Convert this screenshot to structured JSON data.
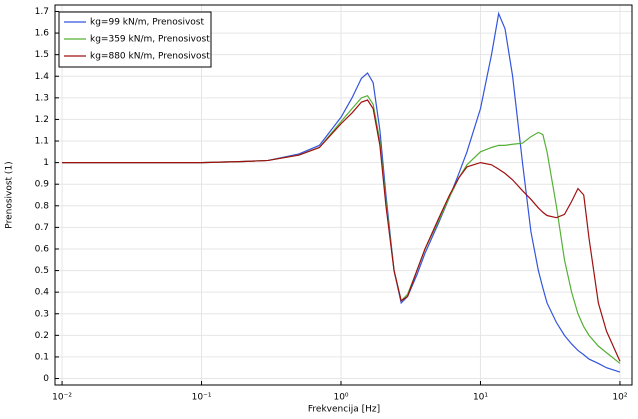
{
  "chart_data": {
    "type": "line",
    "xlabel": "Frekvencija [Hz]",
    "ylabel": "Prenosivost (1)",
    "xscale": "log",
    "grid": true,
    "legend": "upper-left",
    "xlim": [
      0.0089,
      122
    ],
    "ylim": [
      -0.03,
      1.73
    ],
    "xticks": [
      {
        "value": 0.01,
        "label": "10⁻²"
      },
      {
        "value": 0.1,
        "label": "10⁻¹"
      },
      {
        "value": 1,
        "label": "10⁰"
      },
      {
        "value": 10,
        "label": "10¹"
      },
      {
        "value": 100,
        "label": "10²"
      }
    ],
    "yticks": [
      0,
      0.1,
      0.2,
      0.3,
      0.4,
      0.5,
      0.6,
      0.7,
      0.8,
      0.9,
      1,
      1.1,
      1.2,
      1.3,
      1.4,
      1.5,
      1.6,
      1.7
    ],
    "x": [
      0.01,
      0.03,
      0.1,
      0.2,
      0.3,
      0.5,
      0.7,
      1,
      1.2,
      1.4,
      1.55,
      1.7,
      1.9,
      2.1,
      2.4,
      2.7,
      3,
      3.5,
      4,
      5,
      6,
      7,
      8,
      10,
      12,
      13.5,
      15,
      17,
      20,
      23,
      26,
      28,
      30,
      35,
      40,
      45,
      50,
      55,
      60,
      70,
      80,
      100
    ],
    "series": [
      {
        "name": "kg=99 kN/m, Prenosivost",
        "color": "#3355dd",
        "values": [
          1,
          1,
          1,
          1.005,
          1.01,
          1.04,
          1.08,
          1.21,
          1.3,
          1.39,
          1.415,
          1.37,
          1.15,
          0.85,
          0.5,
          0.35,
          0.38,
          0.48,
          0.58,
          0.72,
          0.84,
          0.95,
          1.05,
          1.25,
          1.5,
          1.69,
          1.62,
          1.4,
          1.0,
          0.68,
          0.5,
          0.42,
          0.35,
          0.26,
          0.2,
          0.16,
          0.13,
          0.11,
          0.09,
          0.07,
          0.05,
          0.03
        ]
      },
      {
        "name": "kg=359 kN/m, Prenosivost",
        "color": "#55b035",
        "values": [
          1,
          1,
          1,
          1.005,
          1.01,
          1.035,
          1.07,
          1.19,
          1.25,
          1.3,
          1.31,
          1.27,
          1.1,
          0.82,
          0.5,
          0.36,
          0.39,
          0.5,
          0.6,
          0.73,
          0.84,
          0.93,
          0.99,
          1.05,
          1.07,
          1.08,
          1.08,
          1.085,
          1.09,
          1.12,
          1.14,
          1.13,
          1.05,
          0.8,
          0.55,
          0.4,
          0.3,
          0.24,
          0.2,
          0.15,
          0.12,
          0.07
        ]
      },
      {
        "name": "kg=880 kN/m, Prenosivost",
        "color": "#a01010",
        "values": [
          1,
          1,
          1,
          1.005,
          1.01,
          1.035,
          1.07,
          1.18,
          1.23,
          1.28,
          1.29,
          1.25,
          1.08,
          0.8,
          0.5,
          0.36,
          0.38,
          0.5,
          0.6,
          0.74,
          0.85,
          0.93,
          0.98,
          1.0,
          0.99,
          0.97,
          0.95,
          0.92,
          0.87,
          0.83,
          0.79,
          0.77,
          0.755,
          0.745,
          0.76,
          0.82,
          0.88,
          0.85,
          0.65,
          0.35,
          0.22,
          0.08
        ]
      }
    ]
  }
}
